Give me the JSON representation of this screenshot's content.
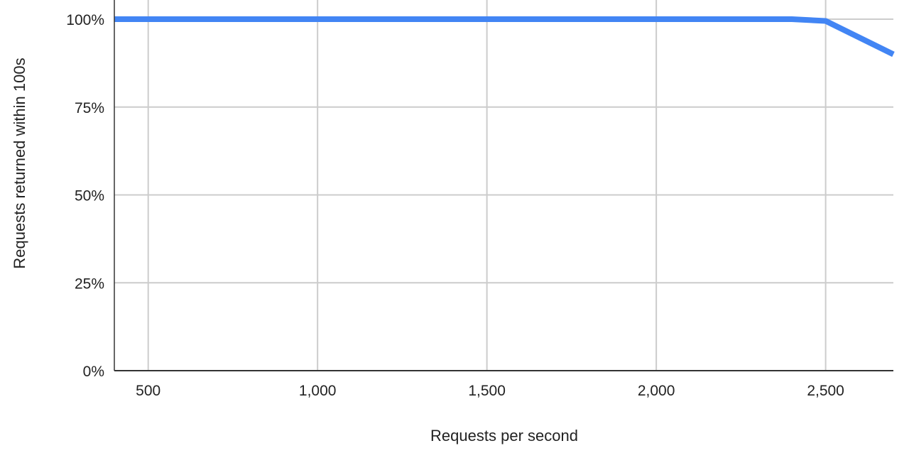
{
  "chart_data": {
    "type": "line",
    "title": "",
    "xlabel": "Requests per second",
    "ylabel": "Requests returned within 100s",
    "xlim": [
      400,
      2700
    ],
    "ylim": [
      0,
      100
    ],
    "x_ticks": [
      500,
      1000,
      1500,
      2000,
      2500
    ],
    "x_tick_labels": [
      "500",
      "1,000",
      "1,500",
      "2,000",
      "2,500"
    ],
    "y_ticks": [
      0,
      25,
      50,
      75,
      100
    ],
    "y_tick_labels": [
      "0%",
      "25%",
      "50%",
      "75%",
      "100%"
    ],
    "grid": true,
    "legend": "none",
    "series": [
      {
        "color": "#4285f4",
        "x": [
          400,
          2400,
          2500,
          2700
        ],
        "y": [
          100,
          100,
          99.5,
          90
        ]
      }
    ]
  }
}
